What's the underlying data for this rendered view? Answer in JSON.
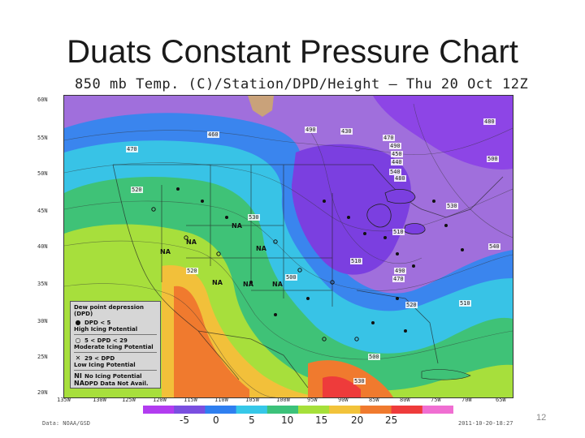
{
  "slide": {
    "title": "Duats Constant Pressure Chart",
    "page_number": "12"
  },
  "chart": {
    "header": "850 mb Temp. (C)/Station/DPD/Height – Thu 20 Oct 12Z",
    "lat_labels": [
      "60N",
      "55N",
      "50N",
      "45N",
      "40N",
      "35N",
      "30N",
      "25N",
      "20N"
    ],
    "lon_labels": [
      "135W",
      "130W",
      "125W",
      "120W",
      "115W",
      "110W",
      "105W",
      "100W",
      "95W",
      "90W",
      "85W",
      "80W",
      "75W",
      "70W",
      "65W"
    ],
    "colorbar": {
      "labels": [
        "-5",
        "0",
        "5",
        "10",
        "15",
        "20",
        "25"
      ],
      "colors": [
        "#b23cf0",
        "#7a4fe0",
        "#2f7ff0",
        "#36c7e8",
        "#3cc27a",
        "#a6e03a",
        "#f2c33a",
        "#f07a2e",
        "#ee3b3b",
        "#f06ed2"
      ]
    },
    "footer_left": "Data: NOAA/GSD",
    "footer_right": "2011-10-20-18:27",
    "legend": {
      "title": "Dew point depression (DPD)",
      "rows": [
        {
          "symbol": "●",
          "label": "DPD < 5"
        },
        {
          "symbol": "",
          "label": "High Icing Potential",
          "sub": true
        },
        {
          "symbol": "○",
          "label": "5 < DPD < 29"
        },
        {
          "symbol": "",
          "label": "Moderate Icing Potential",
          "sub": true
        },
        {
          "symbol": "✕",
          "label": "29 < DPD"
        },
        {
          "symbol": "",
          "label": "Low Icing Potential",
          "sub": true
        },
        {
          "symbol": "NI",
          "label": "No Icing Potential"
        },
        {
          "symbol": "NA",
          "label": "DPD Data Not Avail."
        }
      ]
    },
    "stations": [
      {
        "label": "460"
      },
      {
        "label": "470"
      },
      {
        "label": "490"
      },
      {
        "label": "430"
      },
      {
        "label": "470"
      },
      {
        "label": "490"
      },
      {
        "label": "450"
      },
      {
        "label": "440"
      },
      {
        "label": "480"
      },
      {
        "label": "520"
      },
      {
        "label": "480"
      },
      {
        "label": "530"
      },
      {
        "label": "510"
      },
      {
        "label": "520"
      },
      {
        "label": "500"
      },
      {
        "label": "510"
      },
      {
        "label": "490"
      },
      {
        "label": "470"
      },
      {
        "label": "540"
      },
      {
        "label": "520"
      },
      {
        "label": "510"
      },
      {
        "label": "500"
      },
      {
        "label": "530"
      },
      {
        "label": "500"
      },
      {
        "label": "540"
      },
      {
        "label": "530"
      }
    ],
    "na_markers": [
      "NA",
      "NA",
      "NA",
      "NA",
      "NA",
      "NA",
      "NA"
    ]
  }
}
